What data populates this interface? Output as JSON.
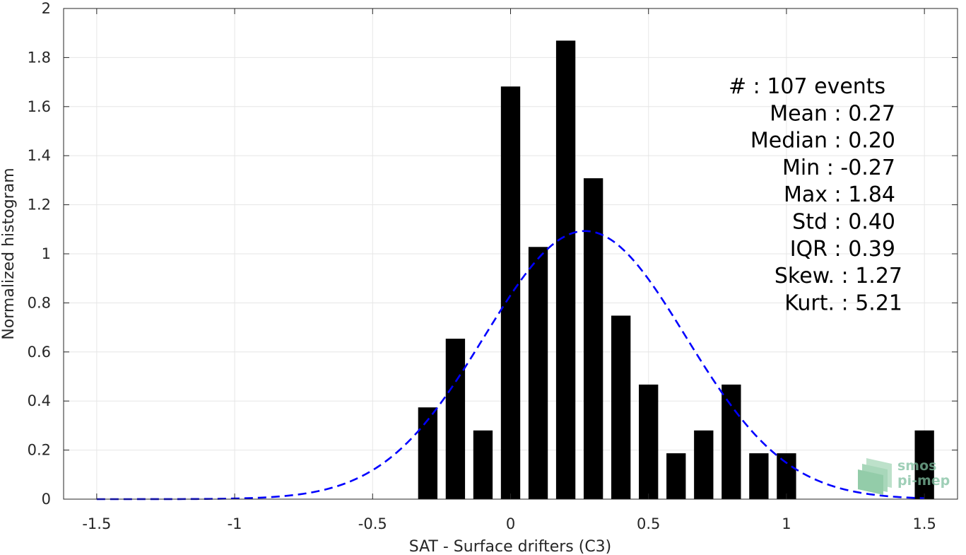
{
  "chart_data": {
    "type": "bar",
    "xlabel": "SAT - Surface drifters (C3)",
    "ylabel": "Normalized histogram",
    "xlim": [
      -1.62,
      1.62
    ],
    "ylim": [
      0,
      2
    ],
    "xticks": [
      "-1.5",
      "-1",
      "-0.5",
      "0",
      "0.5",
      "1",
      "1.5"
    ],
    "xtick_values": [
      -1.5,
      -1,
      -0.5,
      0,
      0.5,
      1,
      1.5
    ],
    "yticks": [
      "0",
      "0.2",
      "0.4",
      "0.6",
      "0.8",
      "1",
      "1.2",
      "1.4",
      "1.6",
      "1.8",
      "2"
    ],
    "ytick_values": [
      0,
      0.2,
      0.4,
      0.6,
      0.8,
      1,
      1.2,
      1.4,
      1.6,
      1.8,
      2
    ],
    "grid": true,
    "bar_width": 0.07,
    "bars": [
      {
        "x": -0.3,
        "value": 0.374
      },
      {
        "x": -0.2,
        "value": 0.654
      },
      {
        "x": -0.1,
        "value": 0.28
      },
      {
        "x": 0.0,
        "value": 1.682
      },
      {
        "x": 0.1,
        "value": 1.028
      },
      {
        "x": 0.2,
        "value": 1.869
      },
      {
        "x": 0.3,
        "value": 1.308
      },
      {
        "x": 0.4,
        "value": 0.748
      },
      {
        "x": 0.5,
        "value": 0.467
      },
      {
        "x": 0.6,
        "value": 0.187
      },
      {
        "x": 0.7,
        "value": 0.28
      },
      {
        "x": 0.8,
        "value": 0.467
      },
      {
        "x": 0.9,
        "value": 0.187
      },
      {
        "x": 1.0,
        "value": 0.187
      },
      {
        "x": 1.5,
        "value": 0.28
      }
    ],
    "bar_color": "#000000",
    "fit_curve": {
      "style": "dashed",
      "color": "#0000ff",
      "mean": 0.27,
      "std": 0.365,
      "x_start": -1.5,
      "x_end": 1.5
    },
    "stats": [
      {
        "label": "#  : 107 events",
        "anchor": "start"
      },
      {
        "label": "Mean : 0.27",
        "anchor": "end"
      },
      {
        "label": "Median : 0.20",
        "anchor": "end"
      },
      {
        "label": "Min : -0.27",
        "anchor": "end"
      },
      {
        "label": "Max : 1.84",
        "anchor": "end"
      },
      {
        "label": "Std : 0.40",
        "anchor": "end"
      },
      {
        "label": "IQR : 0.39",
        "anchor": "end"
      },
      {
        "label": "Skew. : 1.27",
        "anchor": "end2"
      },
      {
        "label": "Kurt. : 5.21",
        "anchor": "end2"
      }
    ]
  },
  "logo": {
    "line1": "smos",
    "line2": "pi-mep",
    "color": "#7fbf9f"
  }
}
